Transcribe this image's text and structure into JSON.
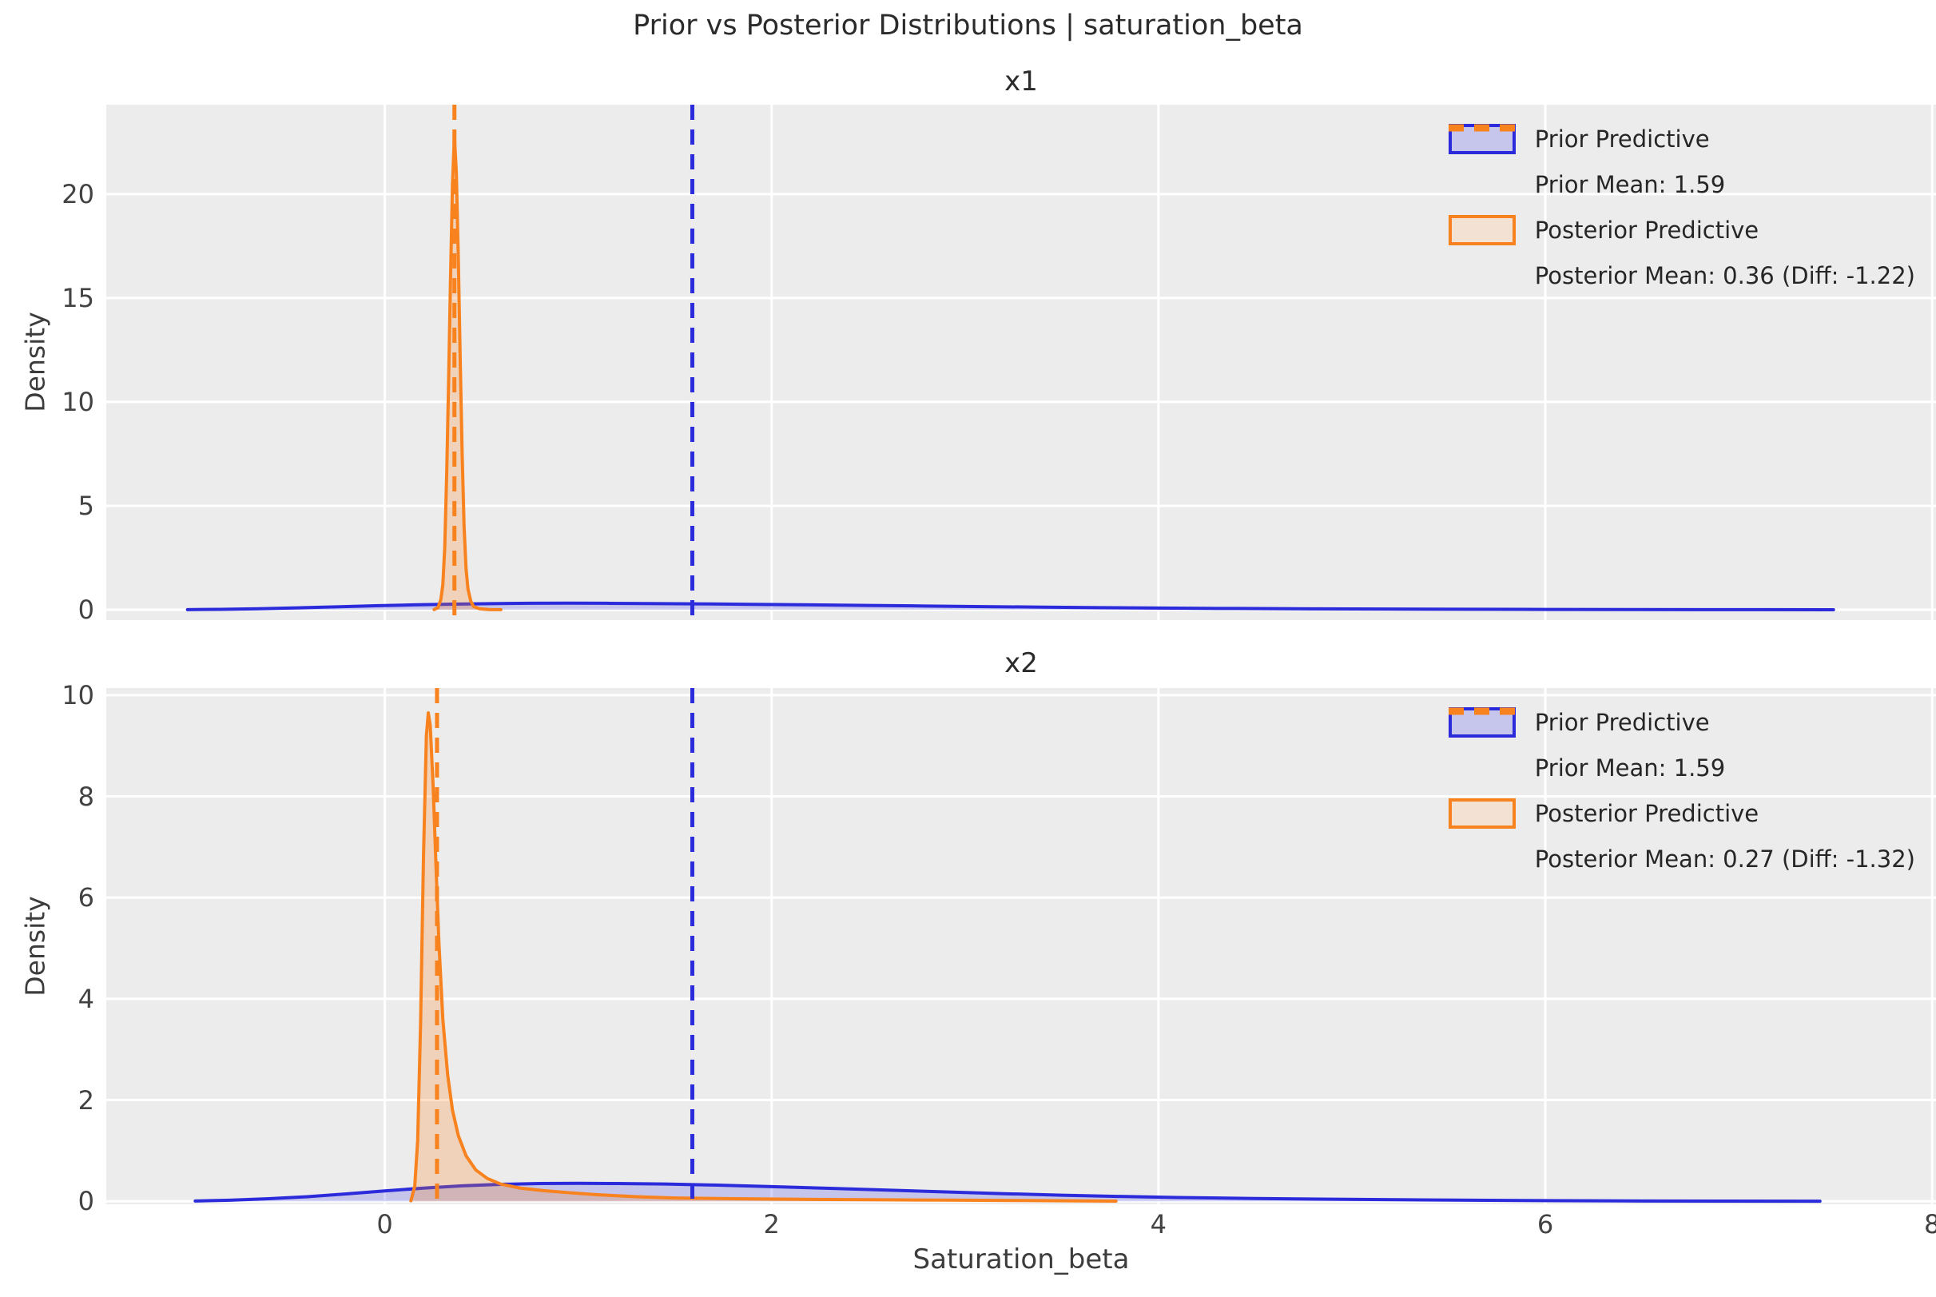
{
  "figure": {
    "title": "Prior vs Posterior Distributions | saturation_beta",
    "xlabel": "Saturation_beta",
    "background": "#ffffff",
    "axes_background": "#ececec",
    "grid_color": "#ffffff",
    "title_color": "#2b2b2b",
    "tick_color": "#424242",
    "prior_color": "#2b2bdc",
    "posterior_color": "#f8821e"
  },
  "chart_data": [
    {
      "type": "area",
      "title": "x1",
      "ylabel": "Density",
      "xlim": [
        -1.44,
        8.02
      ],
      "ylim": [
        -0.5,
        24.3
      ],
      "xticks": [
        0,
        2,
        4,
        6,
        8
      ],
      "show_xtick_labels": false,
      "yticks": [
        0,
        5,
        10,
        15,
        20
      ],
      "grid": true,
      "legend_position": "upper right",
      "series": [
        {
          "name": "Prior Predictive",
          "color": "#2b2bdc",
          "fill": "rgba(60,60,230,0.22)",
          "points": [
            [
              -1.02,
              0.005
            ],
            [
              -0.85,
              0.02
            ],
            [
              -0.65,
              0.05
            ],
            [
              -0.45,
              0.09
            ],
            [
              -0.25,
              0.14
            ],
            [
              -0.05,
              0.19
            ],
            [
              0.15,
              0.235
            ],
            [
              0.35,
              0.27
            ],
            [
              0.55,
              0.295
            ],
            [
              0.75,
              0.31
            ],
            [
              0.95,
              0.315
            ],
            [
              1.15,
              0.31
            ],
            [
              1.35,
              0.3
            ],
            [
              1.6,
              0.285
            ],
            [
              1.9,
              0.26
            ],
            [
              2.2,
              0.235
            ],
            [
              2.5,
              0.205
            ],
            [
              2.8,
              0.18
            ],
            [
              3.1,
              0.15
            ],
            [
              3.4,
              0.125
            ],
            [
              3.7,
              0.1
            ],
            [
              4.0,
              0.08
            ],
            [
              4.4,
              0.06
            ],
            [
              4.8,
              0.045
            ],
            [
              5.2,
              0.032
            ],
            [
              5.6,
              0.022
            ],
            [
              6.0,
              0.015
            ],
            [
              6.4,
              0.009
            ],
            [
              6.8,
              0.005
            ],
            [
              7.1,
              0.003
            ],
            [
              7.49,
              0.001
            ]
          ]
        },
        {
          "name": "Posterior Predictive",
          "color": "#f8821e",
          "fill": "rgba(248,130,30,0.25)",
          "points": [
            [
              0.255,
              0.01
            ],
            [
              0.275,
              0.1
            ],
            [
              0.29,
              0.5
            ],
            [
              0.3,
              1.2
            ],
            [
              0.31,
              3
            ],
            [
              0.32,
              6.5
            ],
            [
              0.33,
              11
            ],
            [
              0.34,
              16
            ],
            [
              0.35,
              20.5
            ],
            [
              0.36,
              22.8
            ],
            [
              0.37,
              21
            ],
            [
              0.38,
              17
            ],
            [
              0.39,
              12
            ],
            [
              0.4,
              7.5
            ],
            [
              0.41,
              4
            ],
            [
              0.42,
              2
            ],
            [
              0.43,
              1
            ],
            [
              0.445,
              0.4
            ],
            [
              0.46,
              0.15
            ],
            [
              0.49,
              0.05
            ],
            [
              0.54,
              0.01
            ],
            [
              0.6,
              0.005
            ]
          ]
        }
      ],
      "vlines": [
        {
          "name": "Prior Mean: 1.59",
          "x": 1.59,
          "color": "#2b2bdc"
        },
        {
          "name": "Posterior Mean: 0.36 (Diff: -1.22)",
          "x": 0.36,
          "color": "#f8821e"
        }
      ],
      "legend": [
        {
          "type": "patch",
          "label": "Prior Predictive",
          "color": "#2b2bdc",
          "fill": "#c6c6ec"
        },
        {
          "type": "dash",
          "label": "Prior Mean: 1.59",
          "color": "#2b2bdc"
        },
        {
          "type": "patch",
          "label": "Posterior Predictive",
          "color": "#f8821e",
          "fill": "#f3e2d3"
        },
        {
          "type": "dash",
          "label": "Posterior Mean: 0.36 (Diff: -1.22)",
          "color": "#f8821e"
        }
      ]
    },
    {
      "type": "area",
      "title": "x2",
      "ylabel": "Density",
      "xlim": [
        -1.44,
        8.02
      ],
      "ylim": [
        -0.06,
        10.14
      ],
      "xticks": [
        0,
        2,
        4,
        6,
        8
      ],
      "show_xtick_labels": true,
      "yticks": [
        0,
        2,
        4,
        6,
        8,
        10
      ],
      "grid": true,
      "legend_position": "upper right",
      "series": [
        {
          "name": "Prior Predictive",
          "color": "#2b2bdc",
          "fill": "rgba(60,60,230,0.22)",
          "points": [
            [
              -0.98,
              0.005
            ],
            [
              -0.8,
              0.02
            ],
            [
              -0.6,
              0.05
            ],
            [
              -0.4,
              0.09
            ],
            [
              -0.2,
              0.145
            ],
            [
              0.0,
              0.205
            ],
            [
              0.2,
              0.26
            ],
            [
              0.4,
              0.305
            ],
            [
              0.6,
              0.335
            ],
            [
              0.8,
              0.35
            ],
            [
              1.0,
              0.355
            ],
            [
              1.2,
              0.35
            ],
            [
              1.45,
              0.34
            ],
            [
              1.7,
              0.32
            ],
            [
              2.0,
              0.29
            ],
            [
              2.3,
              0.255
            ],
            [
              2.6,
              0.22
            ],
            [
              2.9,
              0.185
            ],
            [
              3.2,
              0.15
            ],
            [
              3.5,
              0.12
            ],
            [
              3.8,
              0.095
            ],
            [
              4.1,
              0.075
            ],
            [
              4.5,
              0.055
            ],
            [
              4.9,
              0.04
            ],
            [
              5.3,
              0.028
            ],
            [
              5.7,
              0.018
            ],
            [
              6.1,
              0.011
            ],
            [
              6.5,
              0.006
            ],
            [
              6.9,
              0.003
            ],
            [
              7.42,
              0.001
            ]
          ]
        },
        {
          "name": "Posterior Predictive",
          "color": "#f8821e",
          "fill": "rgba(248,130,30,0.25)",
          "points": [
            [
              0.135,
              0.01
            ],
            [
              0.155,
              0.3
            ],
            [
              0.17,
              1.2
            ],
            [
              0.185,
              3.5
            ],
            [
              0.2,
              6.8
            ],
            [
              0.215,
              9.2
            ],
            [
              0.225,
              9.65
            ],
            [
              0.235,
              9.4
            ],
            [
              0.25,
              8.2
            ],
            [
              0.265,
              6.6
            ],
            [
              0.28,
              5.1
            ],
            [
              0.3,
              3.6
            ],
            [
              0.325,
              2.5
            ],
            [
              0.35,
              1.8
            ],
            [
              0.38,
              1.3
            ],
            [
              0.42,
              0.9
            ],
            [
              0.47,
              0.62
            ],
            [
              0.53,
              0.45
            ],
            [
              0.6,
              0.34
            ],
            [
              0.7,
              0.26
            ],
            [
              0.82,
              0.21
            ],
            [
              0.95,
              0.17
            ],
            [
              1.1,
              0.13
            ],
            [
              1.3,
              0.09
            ],
            [
              1.5,
              0.065
            ],
            [
              1.8,
              0.05
            ],
            [
              2.1,
              0.04
            ],
            [
              2.5,
              0.03
            ],
            [
              2.9,
              0.022
            ],
            [
              3.3,
              0.015
            ],
            [
              3.6,
              0.008
            ],
            [
              3.78,
              0.003
            ]
          ]
        }
      ],
      "vlines": [
        {
          "name": "Prior Mean: 1.59",
          "x": 1.59,
          "color": "#2b2bdc"
        },
        {
          "name": "Posterior Mean: 0.27 (Diff: -1.32)",
          "x": 0.27,
          "color": "#f8821e"
        }
      ],
      "legend": [
        {
          "type": "patch",
          "label": "Prior Predictive",
          "color": "#2b2bdc",
          "fill": "#c6c6ec"
        },
        {
          "type": "dash",
          "label": "Prior Mean: 1.59",
          "color": "#2b2bdc"
        },
        {
          "type": "patch",
          "label": "Posterior Predictive",
          "color": "#f8821e",
          "fill": "#f3e2d3"
        },
        {
          "type": "dash",
          "label": "Posterior Mean: 0.27 (Diff: -1.32)",
          "color": "#f8821e"
        }
      ]
    }
  ]
}
